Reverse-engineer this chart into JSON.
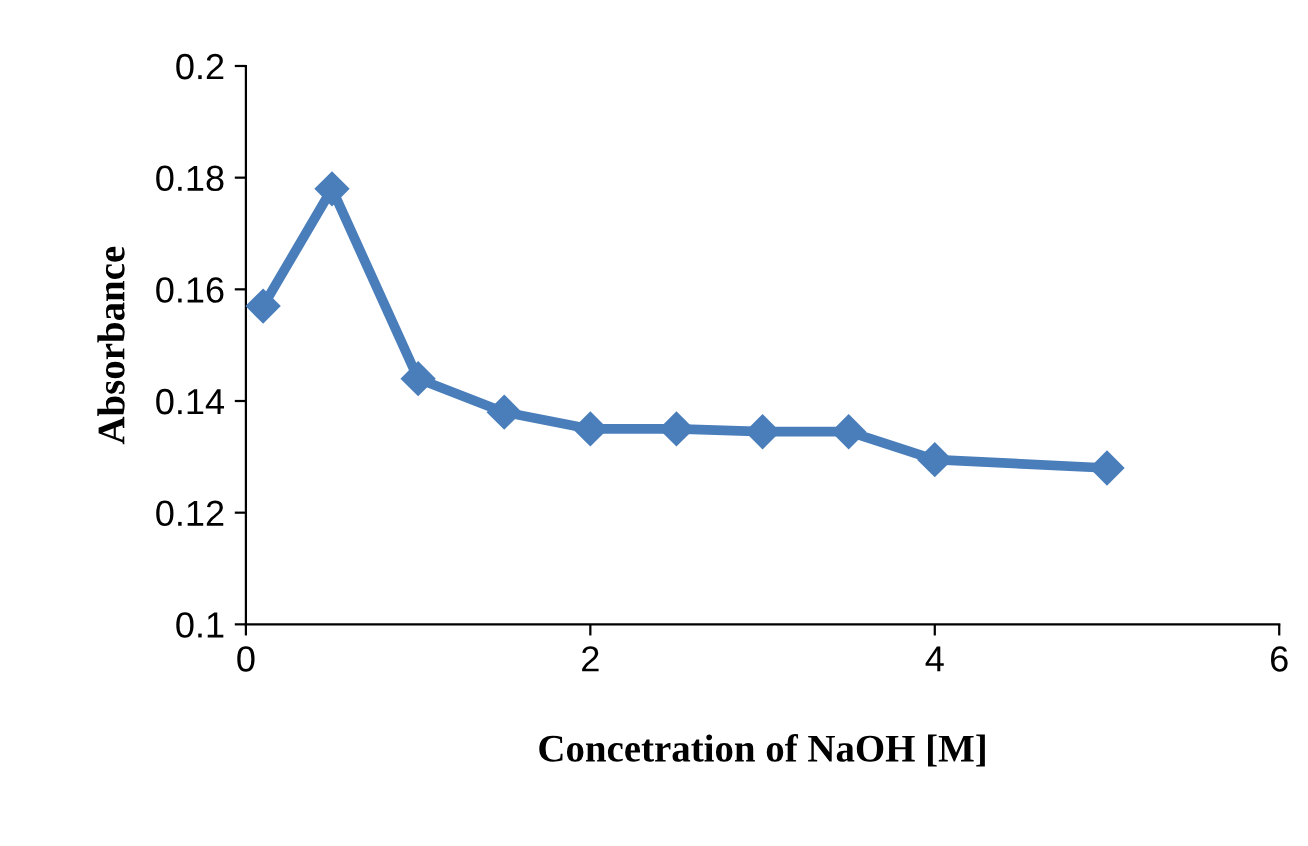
{
  "chart_data": {
    "type": "line",
    "xlabel": "Concetration of NaOH [M]",
    "ylabel": "Absorbance",
    "x": [
      0.1,
      0.5,
      1,
      1.5,
      2,
      2.5,
      3,
      3.5,
      4,
      5
    ],
    "series": [
      {
        "color": "#4a7ebb",
        "values": [
          0.157,
          0.178,
          0.144,
          0.138,
          0.135,
          0.135,
          0.1345,
          0.1345,
          0.1295,
          0.128
        ]
      }
    ],
    "xlim": [
      0,
      6
    ],
    "xticks": [
      0,
      2,
      4,
      6
    ],
    "ylim": [
      0.1,
      0.2
    ],
    "yticks": [
      0.1,
      0.12,
      0.14,
      0.16,
      0.18,
      0.2
    ],
    "grid": false,
    "marker": "diamond",
    "line_style": "solid"
  }
}
